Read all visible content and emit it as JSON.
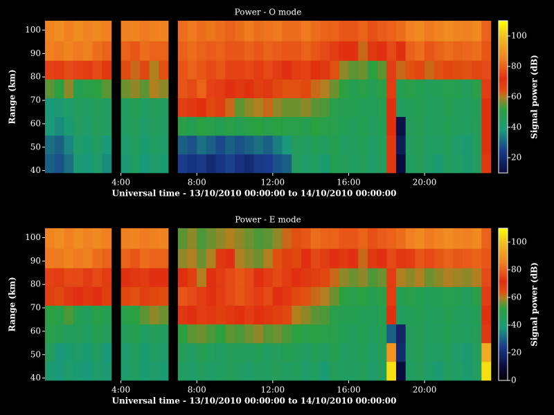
{
  "chart_data": [
    {
      "type": "heatmap",
      "title": "Power - O mode",
      "xlabel": "Universal time - 13/10/2010 00:00:00 to 14/10/2010 00:00:00",
      "ylabel": "Range (km)",
      "colorbar_label": "Signal power (dB)",
      "x": [
        0.25,
        0.75,
        1.25,
        1.75,
        2.25,
        2.75,
        3.25,
        3.75,
        4.25,
        4.75,
        5.25,
        5.75,
        6.25,
        6.75,
        7.25,
        7.75,
        8.25,
        8.75,
        9.25,
        9.75,
        10.25,
        10.75,
        11.25,
        11.75,
        12.25,
        12.75,
        13.25,
        13.75,
        14.25,
        14.75,
        15.25,
        15.75,
        16.25,
        16.75,
        17.25,
        17.75,
        18.25,
        18.75,
        19.25,
        19.75,
        20.25,
        20.75,
        21.25,
        21.75,
        22.25,
        22.75,
        23.25
      ],
      "y": [
        43,
        51,
        59,
        67,
        75,
        83,
        91,
        99.5
      ],
      "z": [
        [
          30,
          28,
          32,
          40,
          38,
          42,
          36,
          null,
          40,
          44,
          38,
          42,
          40,
          null,
          25,
          22,
          24,
          20,
          23,
          26,
          22,
          20,
          24,
          25,
          28,
          30,
          45,
          42,
          44,
          40,
          48,
          46,
          44,
          46,
          42,
          45,
          70,
          10,
          44,
          46,
          42,
          40,
          45,
          43,
          41,
          44,
          70
        ],
        [
          32,
          30,
          35,
          42,
          40,
          44,
          38,
          null,
          42,
          45,
          40,
          44,
          42,
          null,
          30,
          28,
          32,
          30,
          27,
          30,
          28,
          30,
          32,
          30,
          34,
          38,
          46,
          44,
          47,
          45,
          48,
          44,
          45,
          47,
          43,
          46,
          70,
          15,
          45,
          47,
          43,
          44,
          46,
          42,
          40,
          45,
          72
        ],
        [
          38,
          36,
          40,
          45,
          42,
          46,
          44,
          null,
          44,
          46,
          42,
          45,
          44,
          null,
          50,
          48,
          52,
          50,
          48,
          50,
          48,
          50,
          52,
          50,
          52,
          50,
          50,
          48,
          52,
          50,
          49,
          47,
          46,
          48,
          45,
          47,
          72,
          12,
          46,
          48,
          44,
          45,
          47,
          45,
          44,
          46,
          72
        ],
        [
          38,
          40,
          42,
          45,
          44,
          46,
          44,
          null,
          45,
          47,
          44,
          46,
          45,
          null,
          68,
          70,
          72,
          66,
          68,
          62,
          55,
          58,
          60,
          62,
          58,
          56,
          56,
          58,
          55,
          54,
          50,
          48,
          48,
          47,
          46,
          48,
          72,
          45,
          47,
          48,
          45,
          46,
          48,
          46,
          45,
          47,
          72
        ],
        [
          55,
          52,
          58,
          48,
          50,
          52,
          55,
          null,
          56,
          58,
          55,
          60,
          58,
          null,
          78,
          76,
          80,
          75,
          74,
          72,
          70,
          72,
          68,
          70,
          66,
          64,
          64,
          66,
          62,
          60,
          56,
          52,
          48,
          50,
          47,
          50,
          74,
          48,
          50,
          48,
          46,
          47,
          49,
          48,
          46,
          50,
          74
        ],
        [
          75,
          74,
          76,
          75,
          74,
          76,
          70,
          null,
          65,
          62,
          66,
          60,
          64,
          null,
          78,
          80,
          78,
          76,
          78,
          75,
          75,
          76,
          74,
          76,
          74,
          72,
          74,
          75,
          72,
          70,
          64,
          58,
          55,
          56,
          52,
          55,
          74,
          62,
          64,
          66,
          62,
          64,
          66,
          65,
          64,
          66,
          76
        ],
        [
          85,
          84,
          86,
          84,
          85,
          82,
          80,
          null,
          80,
          78,
          82,
          80,
          80,
          null,
          80,
          82,
          80,
          79,
          80,
          78,
          78,
          80,
          78,
          80,
          79,
          78,
          78,
          80,
          78,
          76,
          74,
          72,
          72,
          62,
          70,
          72,
          76,
          72,
          80,
          82,
          78,
          80,
          82,
          80,
          81,
          82,
          78
        ],
        [
          86,
          88,
          85,
          88,
          86,
          87,
          85,
          null,
          85,
          86,
          84,
          85,
          86,
          null,
          82,
          84,
          82,
          83,
          82,
          80,
          82,
          84,
          82,
          83,
          84,
          82,
          82,
          84,
          82,
          80,
          80,
          78,
          78,
          80,
          77,
          79,
          80,
          82,
          85,
          87,
          84,
          86,
          88,
          86,
          85,
          87,
          80
        ]
      ],
      "xlim": [
        0,
        23.5
      ],
      "ylim": [
        39,
        104
      ],
      "xticks": [
        {
          "value": 4,
          "label": "4:00"
        },
        {
          "value": 8,
          "label": "8:00"
        },
        {
          "value": 12,
          "label": "12:00"
        },
        {
          "value": 16,
          "label": "16:00"
        },
        {
          "value": 20,
          "label": "20:00"
        }
      ],
      "yticks": [
        40,
        50,
        60,
        70,
        80,
        90,
        100
      ],
      "zlim": [
        10,
        110
      ],
      "zticks": [
        20,
        40,
        60,
        80,
        100
      ],
      "colormap": [
        [
          10,
          "#0a0a3c"
        ],
        [
          25,
          "#1a3c8c"
        ],
        [
          38,
          "#1a9a7a"
        ],
        [
          52,
          "#2aa040"
        ],
        [
          60,
          "#b08020"
        ],
        [
          64,
          "#e05010"
        ],
        [
          72,
          "#e03010"
        ],
        [
          85,
          "#f08020"
        ],
        [
          100,
          "#f0c020"
        ],
        [
          110,
          "#ffff00"
        ]
      ]
    },
    {
      "type": "heatmap",
      "title": "Power - E mode",
      "xlabel": "Universal time - 13/10/2010 00:00:00 to 14/10/2010 00:00:00",
      "ylabel": "Range (km)",
      "colorbar_label": "Signal power (dB)",
      "x": [
        0.25,
        0.75,
        1.25,
        1.75,
        2.25,
        2.75,
        3.25,
        3.75,
        4.25,
        4.75,
        5.25,
        5.75,
        6.25,
        6.75,
        7.25,
        7.75,
        8.25,
        8.75,
        9.25,
        9.75,
        10.25,
        10.75,
        11.25,
        11.75,
        12.25,
        12.75,
        13.25,
        13.75,
        14.25,
        14.75,
        15.25,
        15.75,
        16.25,
        16.75,
        17.25,
        17.75,
        18.25,
        18.75,
        19.25,
        19.75,
        20.25,
        20.75,
        21.25,
        21.75,
        22.25,
        22.75,
        23.25
      ],
      "y": [
        43,
        51,
        59,
        67,
        75,
        83,
        91,
        99.5
      ],
      "z": [
        [
          40,
          38,
          42,
          40,
          38,
          42,
          40,
          null,
          42,
          44,
          40,
          42,
          40,
          null,
          44,
          42,
          45,
          43,
          44,
          46,
          44,
          42,
          45,
          44,
          46,
          44,
          45,
          42,
          44,
          40,
          46,
          44,
          44,
          46,
          42,
          45,
          105,
          10,
          44,
          46,
          42,
          40,
          45,
          43,
          41,
          44,
          105
        ],
        [
          45,
          38,
          40,
          42,
          40,
          44,
          38,
          null,
          42,
          45,
          40,
          44,
          42,
          null,
          46,
          44,
          48,
          45,
          44,
          46,
          46,
          45,
          47,
          44,
          46,
          48,
          46,
          44,
          47,
          45,
          48,
          44,
          45,
          47,
          43,
          46,
          90,
          20,
          45,
          47,
          43,
          44,
          46,
          42,
          40,
          45,
          95
        ],
        [
          50,
          48,
          46,
          46,
          44,
          48,
          46,
          null,
          46,
          48,
          44,
          46,
          45,
          null,
          52,
          55,
          56,
          54,
          52,
          55,
          54,
          56,
          58,
          55,
          56,
          54,
          52,
          50,
          52,
          50,
          49,
          47,
          46,
          48,
          45,
          47,
          30,
          18,
          46,
          48,
          44,
          45,
          47,
          45,
          44,
          46,
          70
        ],
        [
          52,
          50,
          54,
          48,
          46,
          50,
          48,
          null,
          50,
          52,
          55,
          58,
          56,
          null,
          70,
          72,
          74,
          70,
          68,
          70,
          72,
          74,
          72,
          70,
          68,
          66,
          60,
          58,
          55,
          54,
          50,
          48,
          48,
          47,
          46,
          48,
          72,
          45,
          47,
          48,
          45,
          46,
          48,
          46,
          45,
          47,
          72
        ],
        [
          68,
          66,
          70,
          72,
          70,
          72,
          68,
          null,
          66,
          64,
          68,
          66,
          65,
          null,
          78,
          76,
          74,
          72,
          74,
          76,
          78,
          76,
          74,
          76,
          72,
          70,
          66,
          64,
          62,
          60,
          56,
          52,
          50,
          52,
          48,
          50,
          74,
          48,
          50,
          48,
          46,
          47,
          49,
          48,
          46,
          50,
          74
        ],
        [
          75,
          74,
          76,
          76,
          74,
          76,
          74,
          null,
          72,
          70,
          74,
          72,
          72,
          null,
          72,
          68,
          60,
          72,
          74,
          76,
          78,
          76,
          72,
          74,
          76,
          74,
          72,
          70,
          68,
          66,
          62,
          58,
          56,
          58,
          54,
          56,
          74,
          60,
          58,
          60,
          56,
          58,
          60,
          59,
          58,
          60,
          76
        ],
        [
          84,
          84,
          86,
          84,
          85,
          82,
          80,
          null,
          80,
          78,
          82,
          80,
          80,
          null,
          58,
          60,
          56,
          60,
          70,
          72,
          60,
          58,
          56,
          60,
          64,
          68,
          66,
          72,
          76,
          74,
          72,
          70,
          72,
          62,
          70,
          72,
          76,
          70,
          74,
          78,
          76,
          78,
          80,
          78,
          79,
          80,
          78
        ],
        [
          86,
          88,
          85,
          88,
          86,
          87,
          85,
          null,
          85,
          86,
          84,
          85,
          86,
          null,
          55,
          58,
          54,
          56,
          58,
          60,
          58,
          56,
          54,
          55,
          58,
          62,
          64,
          78,
          82,
          80,
          80,
          78,
          78,
          80,
          77,
          79,
          80,
          82,
          85,
          87,
          84,
          86,
          88,
          86,
          85,
          87,
          80
        ]
      ],
      "xlim": [
        0,
        23.5
      ],
      "ylim": [
        39,
        104
      ],
      "xticks": [
        {
          "value": 4,
          "label": "4:00"
        },
        {
          "value": 8,
          "label": "8:00"
        },
        {
          "value": 12,
          "label": "12:00"
        },
        {
          "value": 16,
          "label": "16:00"
        },
        {
          "value": 20,
          "label": "20:00"
        }
      ],
      "yticks": [
        40,
        50,
        60,
        70,
        80,
        90,
        100
      ],
      "zlim": [
        0,
        110
      ],
      "zticks": [
        0,
        20,
        40,
        60,
        80,
        100
      ],
      "colormap": [
        [
          0,
          "#000000"
        ],
        [
          10,
          "#0a0a3c"
        ],
        [
          25,
          "#1a3c8c"
        ],
        [
          38,
          "#1a9a7a"
        ],
        [
          52,
          "#2aa040"
        ],
        [
          60,
          "#b08020"
        ],
        [
          64,
          "#e05010"
        ],
        [
          72,
          "#e03010"
        ],
        [
          85,
          "#f08020"
        ],
        [
          100,
          "#f0c020"
        ],
        [
          110,
          "#ffff00"
        ]
      ]
    }
  ]
}
